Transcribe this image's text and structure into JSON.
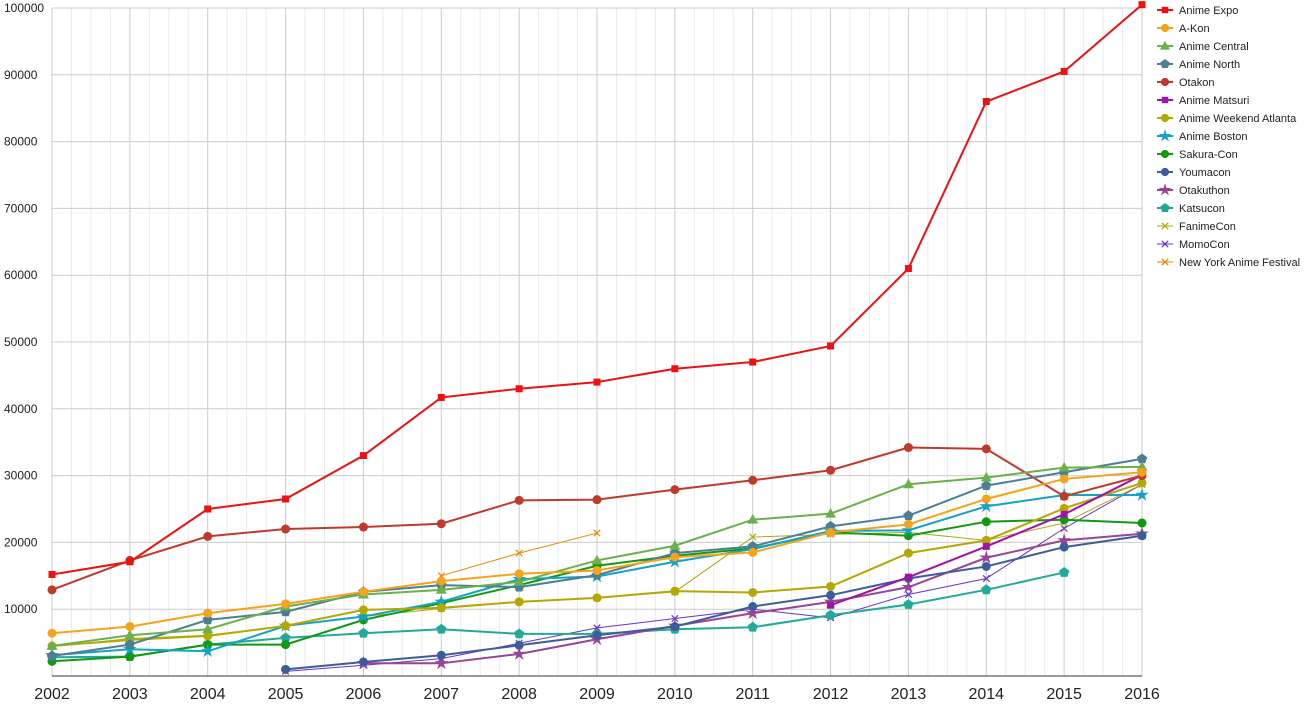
{
  "chart_data": {
    "type": "line",
    "title": "",
    "xlabel": "",
    "ylabel": "",
    "x": [
      2002,
      2003,
      2004,
      2005,
      2006,
      2007,
      2008,
      2009,
      2010,
      2011,
      2012,
      2013,
      2014,
      2015,
      2016
    ],
    "xlim": [
      2002,
      2016
    ],
    "ylim": [
      0,
      100000
    ],
    "yticks": [
      10000,
      20000,
      30000,
      40000,
      50000,
      60000,
      70000,
      80000,
      90000,
      100000
    ],
    "xticks": [
      "2002",
      "2003",
      "2004",
      "2005",
      "2006",
      "2007",
      "2008",
      "2009",
      "2010",
      "2011",
      "2012",
      "2013",
      "2014",
      "2015",
      "2016"
    ],
    "grid": true,
    "legend_position": "top-right",
    "series": [
      {
        "name": "Anime Expo",
        "color": "#ee1111",
        "marker": "square",
        "width": 2,
        "values": [
          15200,
          17100,
          25000,
          26500,
          33000,
          41700,
          43000,
          44000,
          46000,
          47000,
          49400,
          61000,
          86000,
          90500,
          100500
        ]
      },
      {
        "name": "A-Kon",
        "color": "#f5a31a",
        "marker": "circle",
        "width": 2,
        "values": [
          6400,
          7400,
          9400,
          10800,
          12600,
          14200,
          15300,
          15800,
          17800,
          18500,
          21500,
          22700,
          26500,
          29500,
          30500
        ]
      },
      {
        "name": "Anime Central",
        "color": "#6ab04c",
        "marker": "triangle",
        "width": 2,
        "values": [
          4500,
          6100,
          7000,
          10400,
          12200,
          12900,
          14100,
          17300,
          19500,
          23400,
          24300,
          28700,
          29700,
          31200,
          31300
        ]
      },
      {
        "name": "Anime North",
        "color": "#4a7f94",
        "marker": "pentagon",
        "width": 2,
        "values": [
          3000,
          4700,
          8400,
          9600,
          12600,
          13600,
          13300,
          15100,
          18400,
          19400,
          22400,
          24000,
          28500,
          30500,
          32500
        ]
      },
      {
        "name": "Otakon",
        "color": "#c0392b",
        "marker": "circle",
        "width": 2,
        "values": [
          12900,
          17300,
          20900,
          22000,
          22300,
          22800,
          26300,
          26400,
          27900,
          29300,
          30800,
          34200,
          34000,
          26900,
          30000
        ]
      },
      {
        "name": "Anime Matsuri",
        "color": "#a012a8",
        "marker": "square",
        "width": 2,
        "values": [
          null,
          null,
          null,
          null,
          null,
          null,
          null,
          null,
          null,
          null,
          10600,
          14800,
          19400,
          24200,
          30100
        ]
      },
      {
        "name": "Anime Weekend Atlanta",
        "color": "#b5a800",
        "marker": "circle",
        "width": 2,
        "values": [
          4500,
          5400,
          6000,
          7500,
          9900,
          10200,
          11100,
          11700,
          12700,
          12500,
          13400,
          18400,
          20300,
          25100,
          28900
        ]
      },
      {
        "name": "Anime Boston",
        "color": "#14a3c7",
        "marker": "star",
        "width": 2,
        "values": [
          3100,
          4000,
          3700,
          7500,
          8900,
          11100,
          14500,
          14900,
          17100,
          19000,
          21700,
          21800,
          25400,
          27100,
          27100
        ]
      },
      {
        "name": "Sakura-Con",
        "color": "#119911",
        "marker": "circle",
        "width": 2,
        "values": [
          2200,
          2900,
          4700,
          4700,
          8400,
          10900,
          13600,
          16500,
          18000,
          19100,
          21500,
          21000,
          23100,
          23400,
          22900
        ]
      },
      {
        "name": "Youmacon",
        "color": "#3d5d99",
        "marker": "circle",
        "width": 2,
        "values": [
          null,
          null,
          null,
          1000,
          2100,
          3100,
          4600,
          6100,
          7400,
          10400,
          12100,
          14600,
          16400,
          19300,
          21000
        ]
      },
      {
        "name": "Otakuthon",
        "color": "#994499",
        "marker": "star",
        "width": 2,
        "values": [
          null,
          null,
          null,
          null,
          1900,
          1900,
          3300,
          5500,
          7500,
          9400,
          11100,
          13300,
          17700,
          20300,
          21300
        ]
      },
      {
        "name": "Katsucon",
        "color": "#22aa99",
        "marker": "pentagon",
        "width": 2,
        "values": [
          2800,
          2900,
          4700,
          5700,
          6400,
          7000,
          6300,
          6300,
          7000,
          7300,
          9100,
          10700,
          12900,
          15500,
          null
        ]
      },
      {
        "name": "FanimeCon",
        "color": "#aaaa11",
        "marker": "x",
        "width": 1,
        "values": [
          4400,
          5600,
          6100,
          7500,
          8900,
          10100,
          11100,
          11700,
          12600,
          20800,
          21200,
          21500,
          20300,
          22900,
          28700
        ]
      },
      {
        "name": "MomoCon",
        "color": "#6633cc",
        "marker": "x",
        "width": 1,
        "values": [
          null,
          null,
          null,
          700,
          1600,
          2600,
          4900,
          7200,
          8600,
          10000,
          8700,
          12200,
          14600,
          22100,
          28700
        ]
      },
      {
        "name": "New York Anime Festival",
        "color": "#e68a00",
        "marker": "x",
        "width": 1,
        "values": [
          null,
          null,
          null,
          null,
          null,
          15000,
          18400,
          21400,
          null,
          null,
          null,
          null,
          null,
          null,
          null
        ]
      }
    ]
  }
}
